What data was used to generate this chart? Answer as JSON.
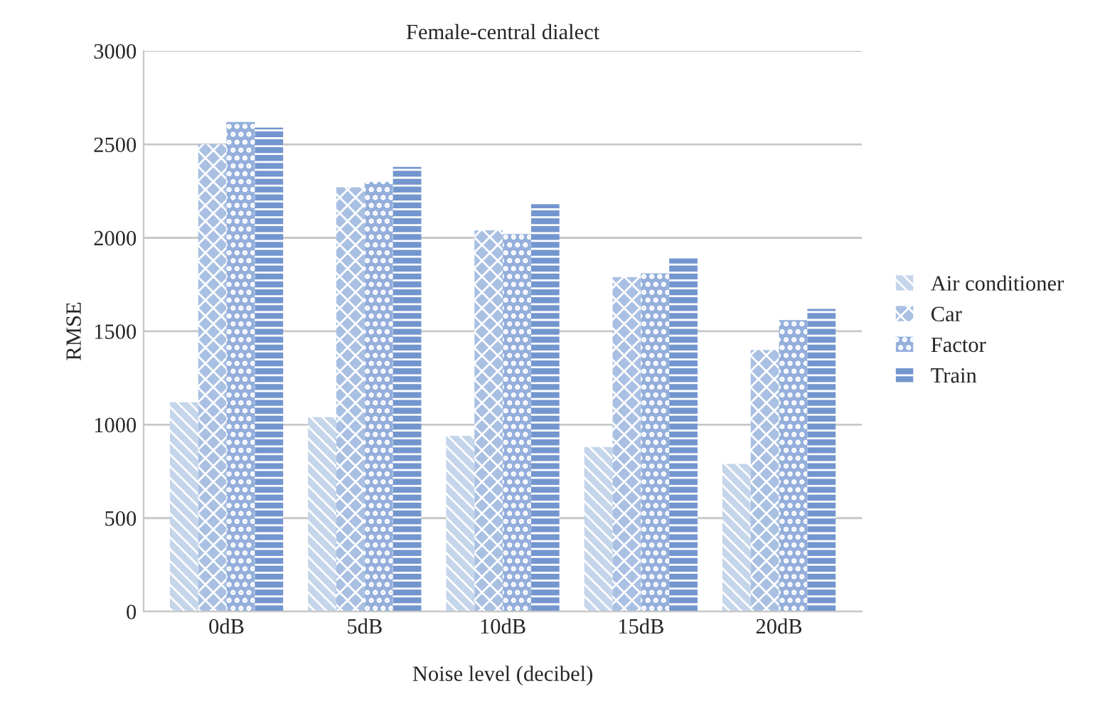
{
  "chart_data": {
    "type": "bar",
    "title": "Female-central dialect",
    "xlabel": "Noise level (decibel)",
    "ylabel": "RMSE",
    "categories": [
      "0dB",
      "5dB",
      "10dB",
      "15dB",
      "20dB"
    ],
    "series": [
      {
        "name": "Air conditioner",
        "color": "#c5d5ea",
        "values": [
          1120,
          1040,
          940,
          880,
          790
        ]
      },
      {
        "name": "Car",
        "color": "#a9c0e2",
        "values": [
          2500,
          2270,
          2040,
          1790,
          1400
        ]
      },
      {
        "name": "Factor",
        "color": "#94afdb",
        "values": [
          2620,
          2300,
          2020,
          1810,
          1560
        ]
      },
      {
        "name": "Train",
        "color": "#7496cf",
        "values": [
          2590,
          2380,
          2180,
          1890,
          1620
        ]
      }
    ],
    "ylim": [
      0,
      3000
    ],
    "yticks": [
      0,
      500,
      1000,
      1500,
      2000,
      2500,
      3000
    ],
    "grid": "y",
    "legend": "right"
  }
}
